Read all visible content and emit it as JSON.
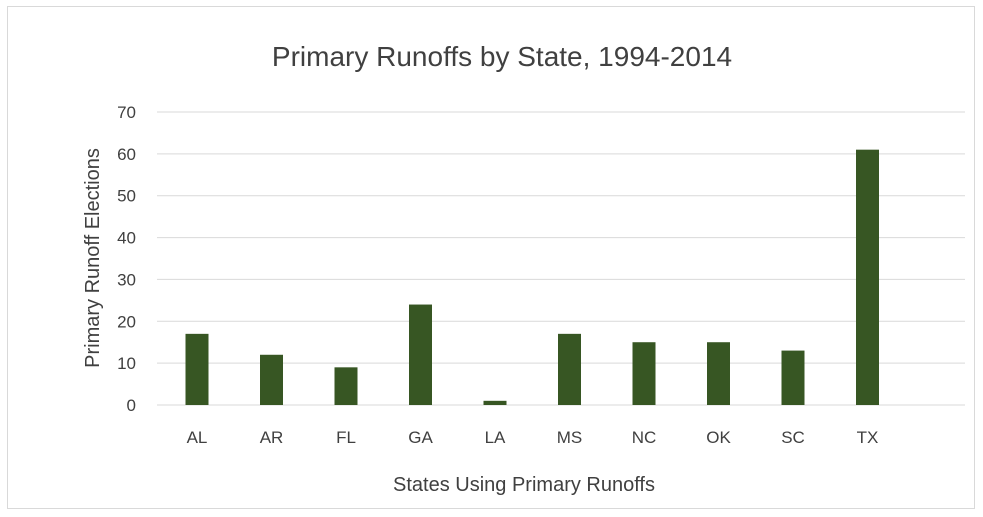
{
  "chart_data": {
    "type": "bar",
    "title": "Primary Runoffs by State, 1994-2014",
    "xlabel": "States Using Primary Runoffs",
    "ylabel": "Primary Runoff Elections",
    "categories": [
      "AL",
      "AR",
      "FL",
      "GA",
      "LA",
      "MS",
      "NC",
      "OK",
      "SC",
      "TX"
    ],
    "values": [
      17,
      12,
      9,
      24,
      1,
      17,
      15,
      15,
      13,
      61
    ],
    "ylim": [
      0,
      70
    ],
    "yticks": [
      0,
      10,
      20,
      30,
      40,
      50,
      60,
      70
    ],
    "grid": true,
    "legend": "none",
    "colors": {
      "bar": "#375623",
      "grid": "#d9d9d9",
      "text": "#404040"
    }
  }
}
